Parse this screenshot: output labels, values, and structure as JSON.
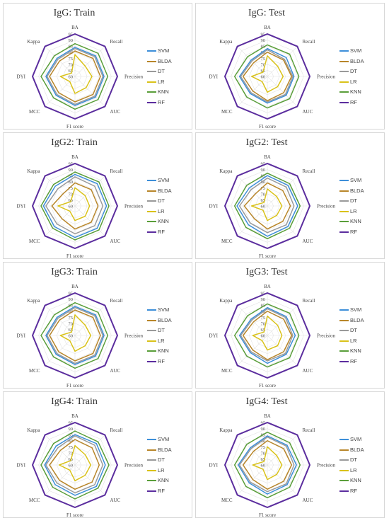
{
  "figure": {
    "axes": [
      "BA",
      "Recall",
      "Precision",
      "AUC",
      "F1 score",
      "MCC",
      "DYI",
      "Kappa"
    ],
    "rings": [
      60,
      65,
      70,
      75,
      80,
      85,
      90,
      95
    ],
    "models": [
      {
        "name": "SVM",
        "color": "#3d8fd9"
      },
      {
        "name": "BLDA",
        "color": "#b8862a"
      },
      {
        "name": "DT",
        "color": "#9a9a9a"
      },
      {
        "name": "LR",
        "color": "#d9c21a"
      },
      {
        "name": "KNN",
        "color": "#5a9e3a"
      },
      {
        "name": "RF",
        "color": "#5b2d9e"
      }
    ]
  },
  "chart_data": [
    {
      "type": "radar",
      "title": "IgG: Train",
      "categories": [
        "BA",
        "Recall",
        "Precision",
        "AUC",
        "F1 score",
        "MCC",
        "DYI",
        "Kappa"
      ],
      "rlim": [
        60,
        95
      ],
      "series": [
        {
          "name": "SVM",
          "values": [
            84,
            84,
            84,
            84,
            84,
            82,
            84,
            81
          ]
        },
        {
          "name": "BLDA",
          "values": [
            81,
            81,
            81,
            81,
            81,
            79,
            81,
            78
          ]
        },
        {
          "name": "DT",
          "values": [
            83,
            83,
            83,
            83,
            83,
            81,
            83,
            80
          ]
        },
        {
          "name": "LR",
          "values": [
            78,
            72,
            74,
            73,
            74,
            66,
            72,
            64
          ]
        },
        {
          "name": "KNN",
          "values": [
            87,
            87,
            87,
            87,
            87,
            85,
            88,
            84
          ]
        },
        {
          "name": "RF",
          "values": [
            95,
            95,
            95,
            95,
            95,
            95,
            95,
            95
          ]
        }
      ]
    },
    {
      "type": "radar",
      "title": "IgG: Test",
      "categories": [
        "BA",
        "Recall",
        "Precision",
        "AUC",
        "F1 score",
        "MCC",
        "DYI",
        "Kappa"
      ],
      "rlim": [
        60,
        95
      ],
      "series": [
        {
          "name": "SVM",
          "values": [
            83,
            82,
            82,
            82,
            82,
            80,
            83,
            79
          ]
        },
        {
          "name": "BLDA",
          "values": [
            80,
            79,
            80,
            79,
            80,
            77,
            80,
            76
          ]
        },
        {
          "name": "DT",
          "values": [
            82,
            80,
            81,
            81,
            81,
            79,
            82,
            78
          ]
        },
        {
          "name": "LR",
          "values": [
            77,
            72,
            73,
            72,
            73,
            66,
            73,
            65
          ]
        },
        {
          "name": "KNN",
          "values": [
            86,
            86,
            86,
            86,
            86,
            84,
            87,
            83
          ]
        },
        {
          "name": "RF",
          "values": [
            95,
            95,
            95,
            95,
            95,
            95,
            95,
            95
          ]
        }
      ]
    },
    {
      "type": "radar",
      "title": "IgG2: Train",
      "categories": [
        "BA",
        "Recall",
        "Precision",
        "AUC",
        "F1 score",
        "MCC",
        "DYI",
        "Kappa"
      ],
      "rlim": [
        60,
        95
      ],
      "series": [
        {
          "name": "SVM",
          "values": [
            86,
            86,
            86,
            86,
            86,
            84,
            86,
            83
          ]
        },
        {
          "name": "BLDA",
          "values": [
            79,
            79,
            79,
            79,
            79,
            75,
            79,
            74
          ]
        },
        {
          "name": "DT",
          "values": [
            84,
            83,
            83,
            83,
            83,
            81,
            84,
            80
          ]
        },
        {
          "name": "LR",
          "values": [
            75,
            72,
            72,
            72,
            72,
            66,
            74,
            65
          ]
        },
        {
          "name": "KNN",
          "values": [
            88,
            88,
            88,
            88,
            88,
            86,
            88,
            85
          ]
        },
        {
          "name": "RF",
          "values": [
            95,
            95,
            95,
            95,
            95,
            95,
            95,
            95
          ]
        }
      ]
    },
    {
      "type": "radar",
      "title": "IgG2: Test",
      "categories": [
        "BA",
        "Recall",
        "Precision",
        "AUC",
        "F1 score",
        "MCC",
        "DYI",
        "Kappa"
      ],
      "rlim": [
        60,
        95
      ],
      "series": [
        {
          "name": "SVM",
          "values": [
            85,
            84,
            85,
            84,
            85,
            82,
            85,
            81
          ]
        },
        {
          "name": "BLDA",
          "values": [
            79,
            78,
            79,
            78,
            79,
            75,
            79,
            74
          ]
        },
        {
          "name": "DT",
          "values": [
            83,
            82,
            82,
            82,
            82,
            80,
            83,
            79
          ]
        },
        {
          "name": "LR",
          "values": [
            74,
            71,
            72,
            71,
            72,
            65,
            73,
            64
          ]
        },
        {
          "name": "KNN",
          "values": [
            87,
            86,
            87,
            86,
            87,
            85,
            87,
            84
          ]
        },
        {
          "name": "RF",
          "values": [
            95,
            95,
            95,
            95,
            95,
            95,
            95,
            95
          ]
        }
      ]
    },
    {
      "type": "radar",
      "title": "IgG3: Train",
      "categories": [
        "BA",
        "Recall",
        "Precision",
        "AUC",
        "F1 score",
        "MCC",
        "DYI",
        "Kappa"
      ],
      "rlim": [
        60,
        95
      ],
      "series": [
        {
          "name": "SVM",
          "values": [
            84,
            84,
            84,
            84,
            84,
            82,
            84,
            81
          ]
        },
        {
          "name": "BLDA",
          "values": [
            81,
            81,
            81,
            81,
            81,
            79,
            81,
            78
          ]
        },
        {
          "name": "DT",
          "values": [
            83,
            83,
            83,
            83,
            83,
            81,
            83,
            80
          ]
        },
        {
          "name": "LR",
          "values": [
            77,
            72,
            73,
            72,
            73,
            66,
            72,
            64
          ]
        },
        {
          "name": "KNN",
          "values": [
            87,
            87,
            87,
            87,
            87,
            85,
            88,
            84
          ]
        },
        {
          "name": "RF",
          "values": [
            95,
            95,
            95,
            95,
            95,
            95,
            95,
            95
          ]
        }
      ]
    },
    {
      "type": "radar",
      "title": "IgG3: Test",
      "categories": [
        "BA",
        "Recall",
        "Precision",
        "AUC",
        "F1 score",
        "MCC",
        "DYI",
        "Kappa"
      ],
      "rlim": [
        60,
        95
      ],
      "series": [
        {
          "name": "SVM",
          "values": [
            83,
            82,
            83,
            82,
            83,
            80,
            83,
            79
          ]
        },
        {
          "name": "BLDA",
          "values": [
            80,
            79,
            80,
            79,
            80,
            77,
            80,
            76
          ]
        },
        {
          "name": "DT",
          "values": [
            82,
            81,
            81,
            81,
            81,
            79,
            82,
            78
          ]
        },
        {
          "name": "LR",
          "values": [
            76,
            72,
            72,
            72,
            72,
            66,
            72,
            64
          ]
        },
        {
          "name": "KNN",
          "values": [
            86,
            86,
            86,
            86,
            86,
            84,
            87,
            83
          ]
        },
        {
          "name": "RF",
          "values": [
            95,
            95,
            95,
            95,
            95,
            95,
            95,
            95
          ]
        }
      ]
    },
    {
      "type": "radar",
      "title": "IgG4: Train",
      "categories": [
        "BA",
        "Recall",
        "Precision",
        "AUC",
        "F1 score",
        "MCC",
        "DYI",
        "Kappa"
      ],
      "rlim": [
        60,
        95
      ],
      "series": [
        {
          "name": "SVM",
          "values": [
            85,
            85,
            85,
            85,
            85,
            83,
            85,
            82
          ]
        },
        {
          "name": "BLDA",
          "values": [
            81,
            80,
            80,
            80,
            80,
            78,
            81,
            77
          ]
        },
        {
          "name": "DT",
          "values": [
            84,
            83,
            83,
            83,
            83,
            81,
            84,
            80
          ]
        },
        {
          "name": "LR",
          "values": [
            76,
            72,
            73,
            72,
            73,
            66,
            73,
            65
          ]
        },
        {
          "name": "KNN",
          "values": [
            88,
            87,
            88,
            87,
            88,
            86,
            88,
            85
          ]
        },
        {
          "name": "RF",
          "values": [
            95,
            95,
            95,
            95,
            95,
            95,
            95,
            95
          ]
        }
      ]
    },
    {
      "type": "radar",
      "title": "IgG4: Test",
      "categories": [
        "BA",
        "Recall",
        "Precision",
        "AUC",
        "F1 score",
        "MCC",
        "DYI",
        "Kappa"
      ],
      "rlim": [
        60,
        95
      ],
      "series": [
        {
          "name": "SVM",
          "values": [
            84,
            83,
            84,
            83,
            84,
            81,
            84,
            80
          ]
        },
        {
          "name": "BLDA",
          "values": [
            80,
            79,
            80,
            79,
            80,
            77,
            80,
            76
          ]
        },
        {
          "name": "DT",
          "values": [
            83,
            82,
            82,
            82,
            82,
            80,
            83,
            79
          ]
        },
        {
          "name": "LR",
          "values": [
            75,
            71,
            72,
            71,
            72,
            65,
            72,
            64
          ]
        },
        {
          "name": "KNN",
          "values": [
            87,
            86,
            87,
            86,
            87,
            85,
            87,
            84
          ]
        },
        {
          "name": "RF",
          "values": [
            95,
            95,
            95,
            95,
            95,
            95,
            95,
            95
          ]
        }
      ]
    }
  ]
}
